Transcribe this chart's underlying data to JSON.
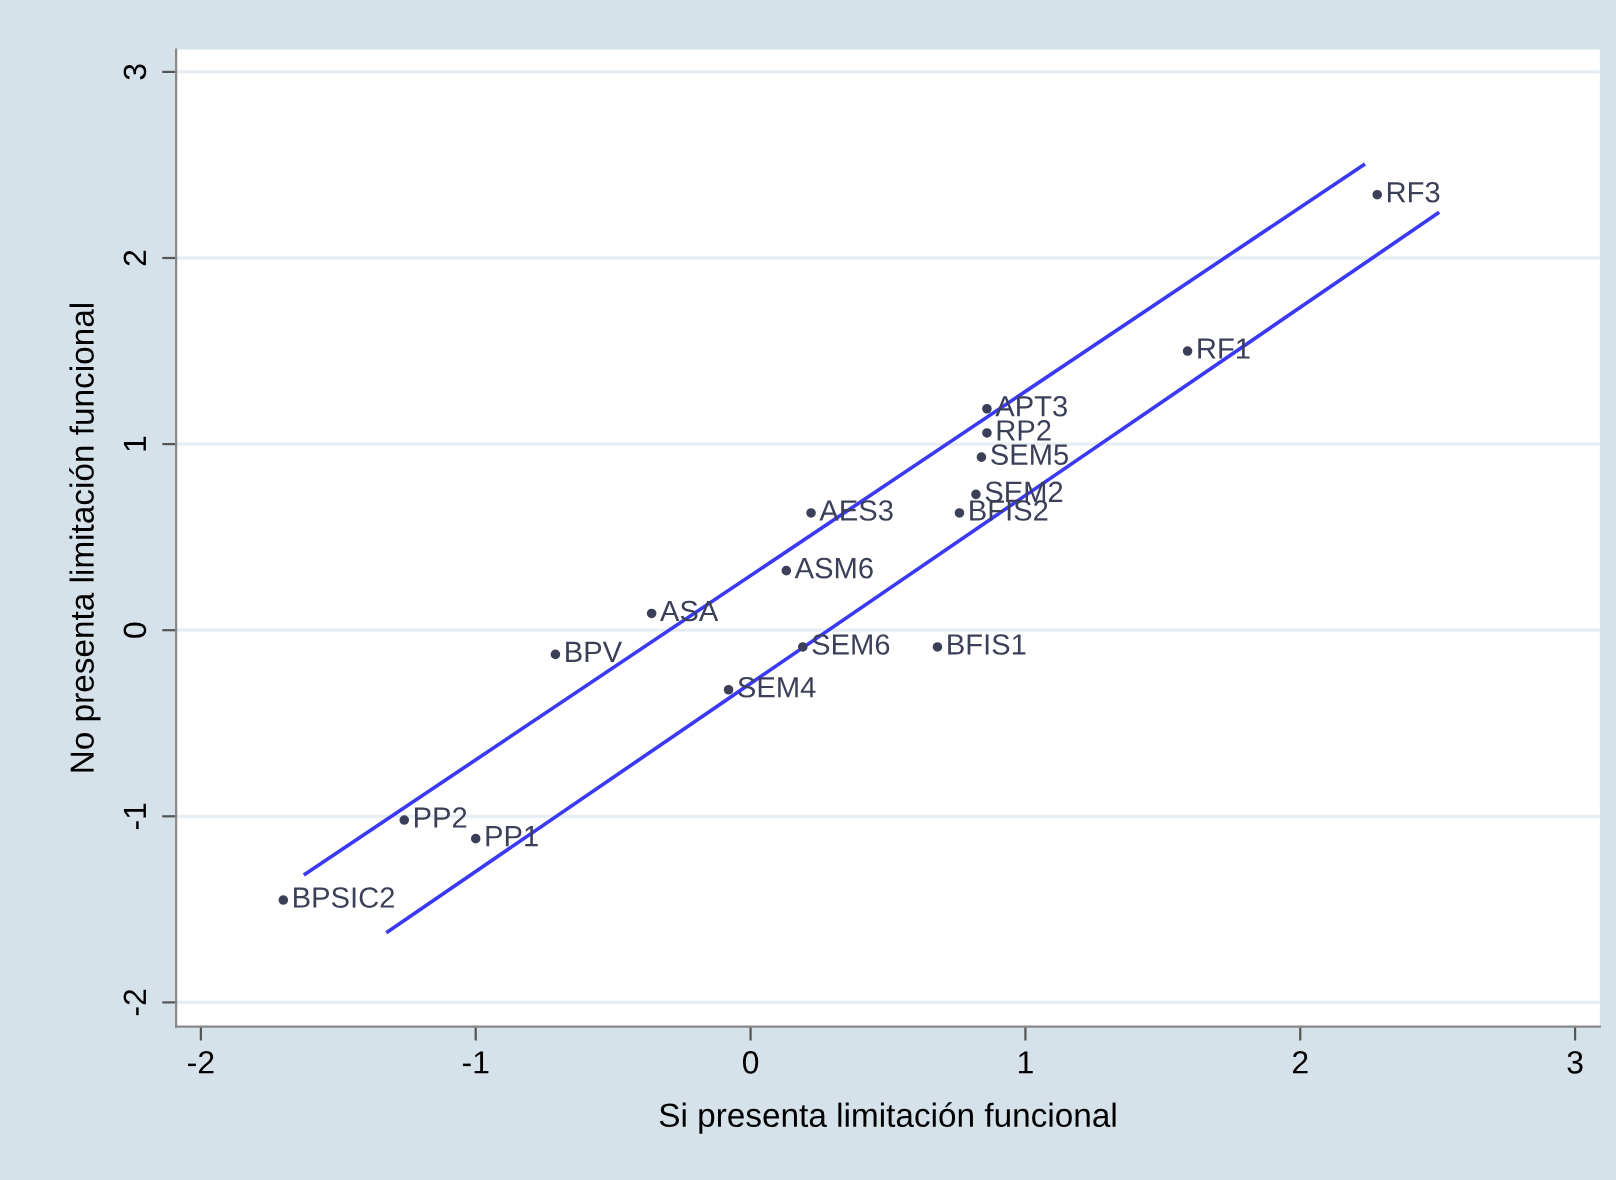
{
  "chart_data": {
    "type": "scatter",
    "xlabel": "Si presenta limitación funcional",
    "ylabel": "No presenta limitación funcional",
    "xlim": [
      -2.09,
      3.09
    ],
    "ylim": [
      -2.13,
      3.12
    ],
    "xticks": [
      -2,
      -1,
      0,
      1,
      2,
      3
    ],
    "yticks": [
      -2,
      -1,
      0,
      1,
      2,
      3
    ],
    "grid": "y",
    "series": [
      {
        "color": "#3c3f58",
        "marker": "circle",
        "x": [
          2.28,
          1.59,
          0.86,
          0.86,
          0.84,
          0.82,
          0.76,
          0.68,
          0.22,
          0.13,
          0.19,
          -0.08,
          -0.36,
          -0.71,
          -1.26,
          -1.0,
          -1.7
        ],
        "values": [
          2.34,
          1.5,
          1.19,
          1.06,
          0.93,
          0.73,
          0.63,
          -0.09,
          0.63,
          0.32,
          -0.09,
          -0.32,
          0.09,
          -0.13,
          -1.02,
          -1.12,
          -1.45
        ]
      },
      {
        "type": "line",
        "color": "#3a3af5",
        "x": [
          -1.62,
          2.23
        ],
        "values": [
          -1.31,
          2.5
        ]
      },
      {
        "type": "line",
        "color": "#3a3af5",
        "x": [
          -1.32,
          2.5
        ],
        "values": [
          -1.62,
          2.24
        ]
      }
    ],
    "annotations": [
      {
        "text": "RF3",
        "x": 2.28,
        "y": 2.34
      },
      {
        "text": "RF1",
        "x": 1.59,
        "y": 1.5
      },
      {
        "text": "APT3",
        "x": 0.86,
        "y": 1.19
      },
      {
        "text": "RP2",
        "x": 0.86,
        "y": 1.06
      },
      {
        "text": "SEM5",
        "x": 0.84,
        "y": 0.93
      },
      {
        "text": "SEM2",
        "x": 0.82,
        "y": 0.73
      },
      {
        "text": "BFIS2",
        "x": 0.76,
        "y": 0.63
      },
      {
        "text": "BFIS1",
        "x": 0.68,
        "y": -0.09
      },
      {
        "text": "AES3",
        "x": 0.22,
        "y": 0.63
      },
      {
        "text": "ASM6",
        "x": 0.13,
        "y": 0.32
      },
      {
        "text": "SEM6",
        "x": 0.19,
        "y": -0.09
      },
      {
        "text": "SEM4",
        "x": -0.08,
        "y": -0.32
      },
      {
        "text": "ASA",
        "x": -0.36,
        "y": 0.09
      },
      {
        "text": "BPV",
        "x": -0.71,
        "y": -0.13
      },
      {
        "text": "PP2",
        "x": -1.26,
        "y": -1.02
      },
      {
        "text": "PP1",
        "x": -1.0,
        "y": -1.12
      },
      {
        "text": "BPSIC2",
        "x": -1.7,
        "y": -1.45
      }
    ]
  }
}
